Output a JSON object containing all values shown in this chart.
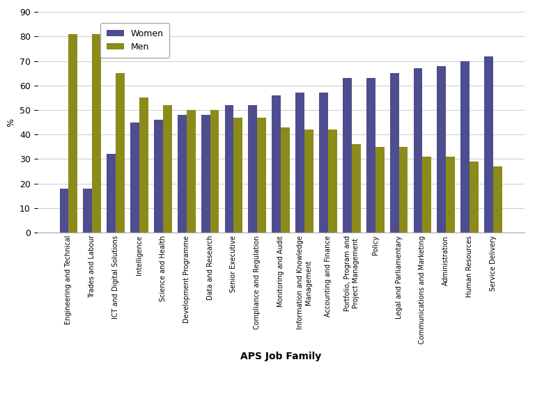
{
  "categories": [
    "Engineering and Technical",
    "Trades and Labour",
    "ICT and Digital Solutions",
    "Intelligence",
    "Science and Health",
    "Development Programme",
    "Data and Research",
    "Senior Executive",
    "Compliance and Regulation",
    "Monitoring and Audit",
    "Information and Knowledge\nManagement",
    "Accounting and Finance",
    "Portfolio, Program and\nProject Management",
    "Policy",
    "Legal and Parliamentary",
    "Communications and Marketing",
    "Administration",
    "Human Resources",
    "Service Delivery"
  ],
  "women": [
    18,
    18,
    32,
    45,
    46,
    48,
    48,
    52,
    52,
    56,
    57,
    57,
    63,
    63,
    65,
    67,
    68,
    70,
    72
  ],
  "men": [
    81,
    81,
    65,
    55,
    52,
    50,
    50,
    47,
    47,
    43,
    42,
    42,
    36,
    35,
    35,
    31,
    31,
    29,
    27
  ],
  "women_color": "#4d4d8f",
  "men_color": "#8b8b1a",
  "ylabel": "%",
  "xlabel": "APS Job Family",
  "ylim": [
    0,
    90
  ],
  "yticks": [
    0,
    10,
    20,
    30,
    40,
    50,
    60,
    70,
    80,
    90
  ],
  "legend_labels": [
    "Women",
    "Men"
  ],
  "background_color": "#ffffff",
  "grid_color": "#d0d0d0",
  "bar_width": 0.38
}
